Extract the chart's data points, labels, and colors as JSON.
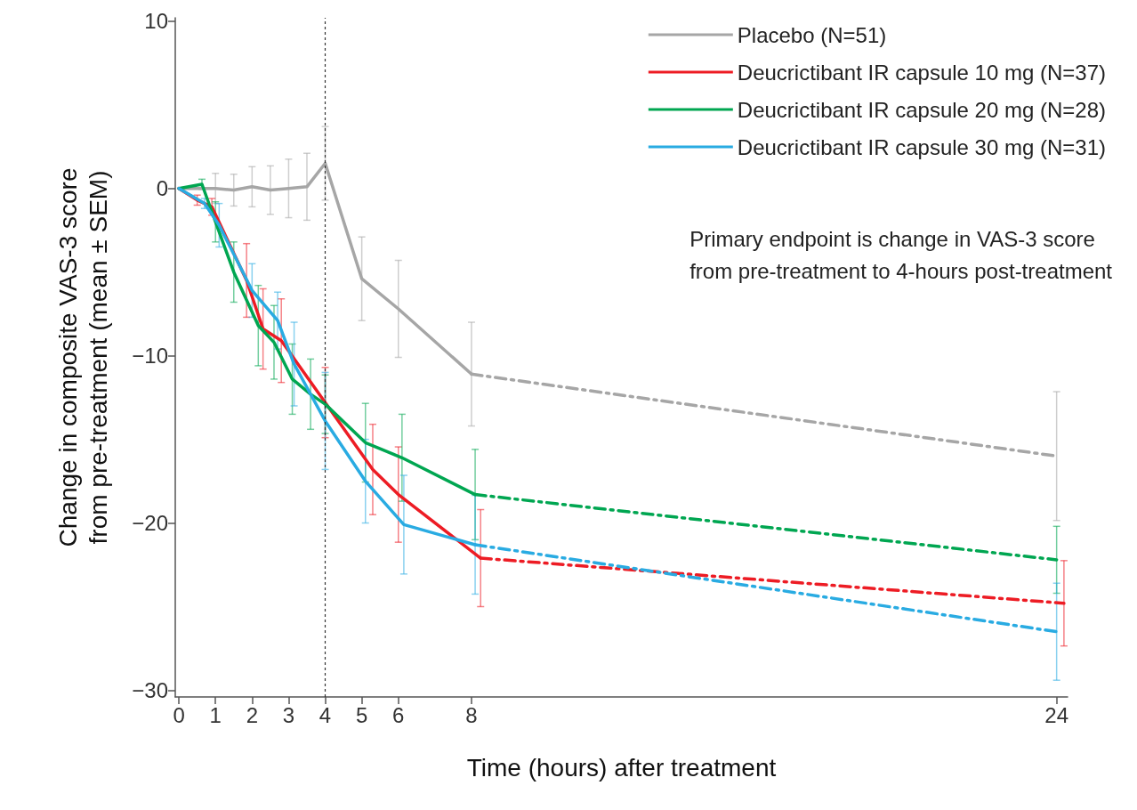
{
  "chart_data": {
    "type": "line",
    "xlabel": "Time (hours) after treatment",
    "ylabel": "Change in composite VAS-3 score\nfrom pre-treatment (mean ± SEM)",
    "xlim": [
      -0.1,
      24.3
    ],
    "xticks": [
      0,
      1,
      2,
      3,
      4,
      5,
      6,
      8,
      24
    ],
    "ylim": [
      -30.4,
      10.2
    ],
    "yticks": [
      {
        "value": -30,
        "label": "−30"
      },
      {
        "value": -20,
        "label": "−20"
      },
      {
        "value": -10,
        "label": "−10"
      },
      0,
      10
    ],
    "grid": false,
    "legend": "top right",
    "marker": "none",
    "line_style": "solid",
    "ref_lines": [
      {
        "axis": "x",
        "value": 4,
        "label": null,
        "color": "#333333",
        "line_style": "dotted"
      }
    ],
    "annotations": [
      "Primary endpoint is change in VAS-3 score\nfrom pre-treatment to 4-hours post-treatment"
    ],
    "series": [
      {
        "name": "Placebo (N=51)",
        "color": "#a6a6a6",
        "x": [
          0,
          1,
          1.5,
          2,
          2.5,
          3,
          3.5,
          4,
          5,
          6,
          8
        ],
        "values": [
          0,
          0,
          -0.1,
          0.1,
          -0.1,
          0,
          0.1,
          1.5,
          -5.4,
          -7.2,
          -11.1
        ],
        "errors": [
          null,
          0.9,
          0.95,
          1.2,
          1.45,
          1.75,
          2,
          2.2,
          2.5,
          2.9,
          3.1
        ]
      },
      {
        "name": "Deucrictibant IR capsule 10 mg (N=37)",
        "color": "#ed1c24",
        "x": [
          0,
          0.5,
          0.9,
          1.85,
          2.3,
          2.8,
          4,
          5.3,
          6,
          8.25
        ],
        "values": [
          0,
          -0.7,
          -1.1,
          -5.5,
          -8.4,
          -9.1,
          -12.8,
          -16.8,
          -18.3,
          -22.1
        ],
        "errors": [
          null,
          0.3,
          0.5,
          2.2,
          2.4,
          2.5,
          2.1,
          2.7,
          2.85,
          2.9
        ]
      },
      {
        "name": "Deucrictibant IR capsule 20 mg (N=28)",
        "color": "#00a651",
        "x": [
          0,
          0.63,
          1,
          1.5,
          2.17,
          2.6,
          3.1,
          3.6,
          4,
          5.1,
          6.1,
          8.1
        ],
        "values": [
          0,
          0.25,
          -2,
          -5,
          -8.2,
          -9.2,
          -11.4,
          -12.3,
          -12.9,
          -15.2,
          -16.1,
          -18.3
        ],
        "errors": [
          null,
          0.3,
          1.2,
          1.8,
          2.4,
          2.2,
          2.1,
          2.1,
          1.75,
          2.35,
          2.6,
          2.7
        ]
      },
      {
        "name": "Deucrictibant IR capsule 30 mg (N=31)",
        "color": "#29abe2",
        "x": [
          0,
          0.7,
          1.1,
          2,
          2.7,
          3.15,
          4,
          5.1,
          6.15,
          8.1
        ],
        "values": [
          0,
          -0.9,
          -2.2,
          -6.1,
          -7.9,
          -10.5,
          -13.9,
          -17.5,
          -20.1,
          -21.3
        ],
        "errors": [
          null,
          0.3,
          1.3,
          1.6,
          1.7,
          2.5,
          2.9,
          2.5,
          2.95,
          2.95
        ]
      },
      {
        "color": "#a6a6a6",
        "line_style": "dashed",
        "x": [
          8,
          24
        ],
        "values": [
          -11.1,
          -16
        ],
        "errors": [
          null,
          3.85
        ]
      },
      {
        "color": "#00a651",
        "line_style": "dashed",
        "x": [
          8.1,
          24
        ],
        "values": [
          -18.3,
          -22.2
        ],
        "errors": [
          null,
          2
        ]
      },
      {
        "color": "#ed1c24",
        "line_style": "dashed",
        "x": [
          8.25,
          24.2
        ],
        "values": [
          -22.1,
          -24.8
        ],
        "errors": [
          null,
          2.55
        ]
      },
      {
        "color": "#29abe2",
        "line_style": "dashed",
        "x": [
          8.1,
          24
        ],
        "values": [
          -21.3,
          -26.5
        ],
        "errors": [
          null,
          2.9
        ]
      }
    ]
  }
}
